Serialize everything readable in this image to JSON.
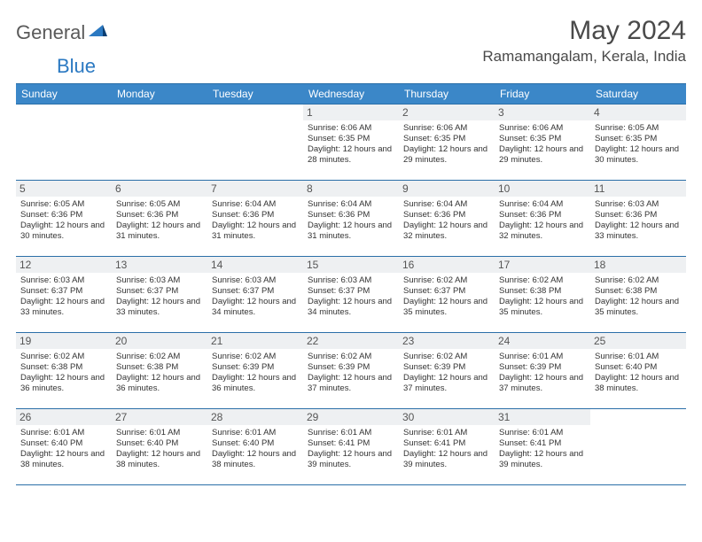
{
  "brand": {
    "word1": "General",
    "word2": "Blue"
  },
  "title": "May 2024",
  "location": "Ramamangalam, Kerala, India",
  "colors": {
    "header_bg": "#3b87c8",
    "border": "#2b6fa8",
    "daynum_bg": "#eef0f2",
    "brand_gray": "#5a5a5a",
    "brand_blue": "#2b79c2"
  },
  "weekdays": [
    "Sunday",
    "Monday",
    "Tuesday",
    "Wednesday",
    "Thursday",
    "Friday",
    "Saturday"
  ],
  "weeks": [
    [
      null,
      null,
      null,
      {
        "n": "1",
        "sr": "6:06 AM",
        "ss": "6:35 PM",
        "dl": "12 hours and 28 minutes."
      },
      {
        "n": "2",
        "sr": "6:06 AM",
        "ss": "6:35 PM",
        "dl": "12 hours and 29 minutes."
      },
      {
        "n": "3",
        "sr": "6:06 AM",
        "ss": "6:35 PM",
        "dl": "12 hours and 29 minutes."
      },
      {
        "n": "4",
        "sr": "6:05 AM",
        "ss": "6:35 PM",
        "dl": "12 hours and 30 minutes."
      }
    ],
    [
      {
        "n": "5",
        "sr": "6:05 AM",
        "ss": "6:36 PM",
        "dl": "12 hours and 30 minutes."
      },
      {
        "n": "6",
        "sr": "6:05 AM",
        "ss": "6:36 PM",
        "dl": "12 hours and 31 minutes."
      },
      {
        "n": "7",
        "sr": "6:04 AM",
        "ss": "6:36 PM",
        "dl": "12 hours and 31 minutes."
      },
      {
        "n": "8",
        "sr": "6:04 AM",
        "ss": "6:36 PM",
        "dl": "12 hours and 31 minutes."
      },
      {
        "n": "9",
        "sr": "6:04 AM",
        "ss": "6:36 PM",
        "dl": "12 hours and 32 minutes."
      },
      {
        "n": "10",
        "sr": "6:04 AM",
        "ss": "6:36 PM",
        "dl": "12 hours and 32 minutes."
      },
      {
        "n": "11",
        "sr": "6:03 AM",
        "ss": "6:36 PM",
        "dl": "12 hours and 33 minutes."
      }
    ],
    [
      {
        "n": "12",
        "sr": "6:03 AM",
        "ss": "6:37 PM",
        "dl": "12 hours and 33 minutes."
      },
      {
        "n": "13",
        "sr": "6:03 AM",
        "ss": "6:37 PM",
        "dl": "12 hours and 33 minutes."
      },
      {
        "n": "14",
        "sr": "6:03 AM",
        "ss": "6:37 PM",
        "dl": "12 hours and 34 minutes."
      },
      {
        "n": "15",
        "sr": "6:03 AM",
        "ss": "6:37 PM",
        "dl": "12 hours and 34 minutes."
      },
      {
        "n": "16",
        "sr": "6:02 AM",
        "ss": "6:37 PM",
        "dl": "12 hours and 35 minutes."
      },
      {
        "n": "17",
        "sr": "6:02 AM",
        "ss": "6:38 PM",
        "dl": "12 hours and 35 minutes."
      },
      {
        "n": "18",
        "sr": "6:02 AM",
        "ss": "6:38 PM",
        "dl": "12 hours and 35 minutes."
      }
    ],
    [
      {
        "n": "19",
        "sr": "6:02 AM",
        "ss": "6:38 PM",
        "dl": "12 hours and 36 minutes."
      },
      {
        "n": "20",
        "sr": "6:02 AM",
        "ss": "6:38 PM",
        "dl": "12 hours and 36 minutes."
      },
      {
        "n": "21",
        "sr": "6:02 AM",
        "ss": "6:39 PM",
        "dl": "12 hours and 36 minutes."
      },
      {
        "n": "22",
        "sr": "6:02 AM",
        "ss": "6:39 PM",
        "dl": "12 hours and 37 minutes."
      },
      {
        "n": "23",
        "sr": "6:02 AM",
        "ss": "6:39 PM",
        "dl": "12 hours and 37 minutes."
      },
      {
        "n": "24",
        "sr": "6:01 AM",
        "ss": "6:39 PM",
        "dl": "12 hours and 37 minutes."
      },
      {
        "n": "25",
        "sr": "6:01 AM",
        "ss": "6:40 PM",
        "dl": "12 hours and 38 minutes."
      }
    ],
    [
      {
        "n": "26",
        "sr": "6:01 AM",
        "ss": "6:40 PM",
        "dl": "12 hours and 38 minutes."
      },
      {
        "n": "27",
        "sr": "6:01 AM",
        "ss": "6:40 PM",
        "dl": "12 hours and 38 minutes."
      },
      {
        "n": "28",
        "sr": "6:01 AM",
        "ss": "6:40 PM",
        "dl": "12 hours and 38 minutes."
      },
      {
        "n": "29",
        "sr": "6:01 AM",
        "ss": "6:41 PM",
        "dl": "12 hours and 39 minutes."
      },
      {
        "n": "30",
        "sr": "6:01 AM",
        "ss": "6:41 PM",
        "dl": "12 hours and 39 minutes."
      },
      {
        "n": "31",
        "sr": "6:01 AM",
        "ss": "6:41 PM",
        "dl": "12 hours and 39 minutes."
      },
      null
    ]
  ],
  "labels": {
    "sunrise": "Sunrise:",
    "sunset": "Sunset:",
    "daylight": "Daylight:"
  }
}
